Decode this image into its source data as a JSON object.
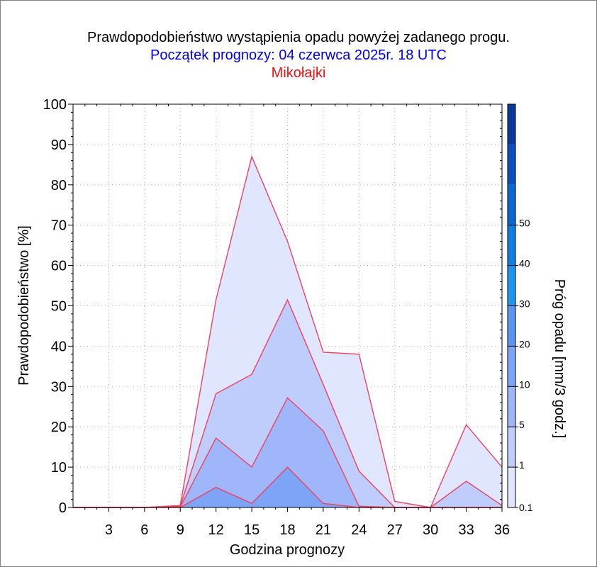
{
  "header": {
    "title": "Prawdopodobieństwo wystąpienia opadu powyżej zadanego progu.",
    "subtitle": "Początek prognozy: 04 czerwca 2025r. 18 UTC",
    "location": "Mikołajki"
  },
  "colors": {
    "title": "#000000",
    "subtitle": "#0000ee",
    "location": "#ee1111",
    "outline": "#f04060",
    "scale": [
      "#dfe6fd",
      "#bfcdfd",
      "#9fb6fb",
      "#7da4f6",
      "#5b95f1",
      "#1e96f2",
      "#0f7fe6",
      "#0b67d4",
      "#0a50c0",
      "#083a9e"
    ]
  },
  "chart_data": {
    "type": "area",
    "xlabel": "Godzina prognozy",
    "ylabel": "Prawdopodobieństwo [%]",
    "xlim": [
      0,
      36
    ],
    "ylim": [
      0,
      100
    ],
    "x": [
      0,
      3,
      6,
      9,
      12,
      15,
      18,
      21,
      24,
      27,
      30,
      33,
      36
    ],
    "x_ticks": [
      "3",
      "6",
      "9",
      "12",
      "15",
      "18",
      "21",
      "24",
      "27",
      "30",
      "33",
      "36"
    ],
    "y_ticks": [
      "0",
      "10",
      "20",
      "30",
      "40",
      "50",
      "60",
      "70",
      "80",
      "90",
      "100"
    ],
    "grid": true,
    "series": [
      {
        "name": "0.1",
        "values": [
          0,
          0,
          0,
          0.5,
          51.5,
          87,
          66,
          38.5,
          38,
          1.5,
          0,
          20.5,
          10
        ]
      },
      {
        "name": "1",
        "values": [
          0,
          0,
          0,
          0.3,
          28.2,
          33,
          51.5,
          30.5,
          9,
          0,
          0,
          6.5,
          0.5
        ]
      },
      {
        "name": "5",
        "values": [
          0,
          0,
          0,
          0.1,
          17.2,
          10,
          27.2,
          19,
          0.3,
          0,
          0,
          0,
          0
        ]
      },
      {
        "name": "10",
        "values": [
          0,
          0,
          0,
          0,
          5,
          1,
          10,
          1,
          0,
          0,
          0,
          0,
          0
        ]
      }
    ],
    "colorbar": {
      "label": "Próg opadu [mm/3 godz.]",
      "ticks": [
        "0.1",
        "1",
        "5",
        "10",
        "20",
        "30",
        "40",
        "50"
      ]
    }
  }
}
